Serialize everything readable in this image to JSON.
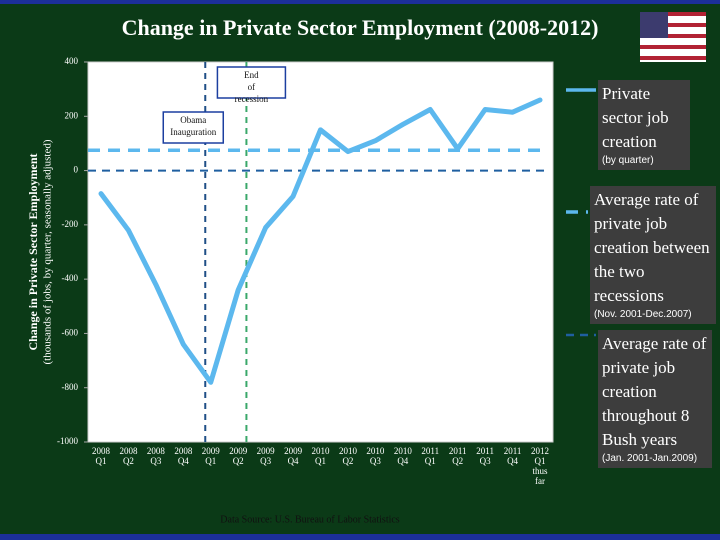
{
  "chart_data": {
    "type": "line",
    "title": "Change in Private Sector Employment (2008-2012)",
    "y_label": "Change in Private Sector Employment",
    "y_sublabel": "(thousands of jobs, by quarter, seasonally adjusted)",
    "source": "Data Source: U.S. Bureau of Labor Statistics",
    "categories": [
      "2008 Q1",
      "2008 Q2",
      "2008 Q3",
      "2008 Q4",
      "2009 Q1",
      "2009 Q2",
      "2009 Q3",
      "2009 Q4",
      "2010 Q1",
      "2010 Q2",
      "2010 Q3",
      "2010 Q4",
      "2011 Q1",
      "2011 Q2",
      "2011 Q3",
      "2011 Q4",
      "2012 Q1 thus far"
    ],
    "series": [
      {
        "name": "Private sector job creation",
        "note": "(by quarter)",
        "color": "#5cb8ee",
        "values": [
          -85,
          -220,
          -420,
          -640,
          -780,
          -440,
          -210,
          -95,
          150,
          70,
          110,
          170,
          225,
          80,
          225,
          215,
          260
        ]
      }
    ],
    "reference_lines": [
      {
        "name": "Average rate of private job creation between the two recessions",
        "note": "(Nov. 2001-Dec.2007)",
        "value": 75,
        "color": "#5cb8ee"
      },
      {
        "name": "Average rate of private job creation throughout 8 Bush years",
        "note": "(Jan. 2001-Jan.2009)",
        "value": 0,
        "color": "#1f5fa0"
      }
    ],
    "annotations": [
      {
        "text": "Obama Inauguration",
        "x": 3.8,
        "color": "#1f4f86"
      },
      {
        "text": "End of recession",
        "x": 5.3,
        "color": "#3aa86a"
      }
    ],
    "ylim": [
      -1000,
      400
    ],
    "yticks": [
      -1000,
      -800,
      -600,
      -400,
      -200,
      0,
      200,
      400
    ]
  }
}
